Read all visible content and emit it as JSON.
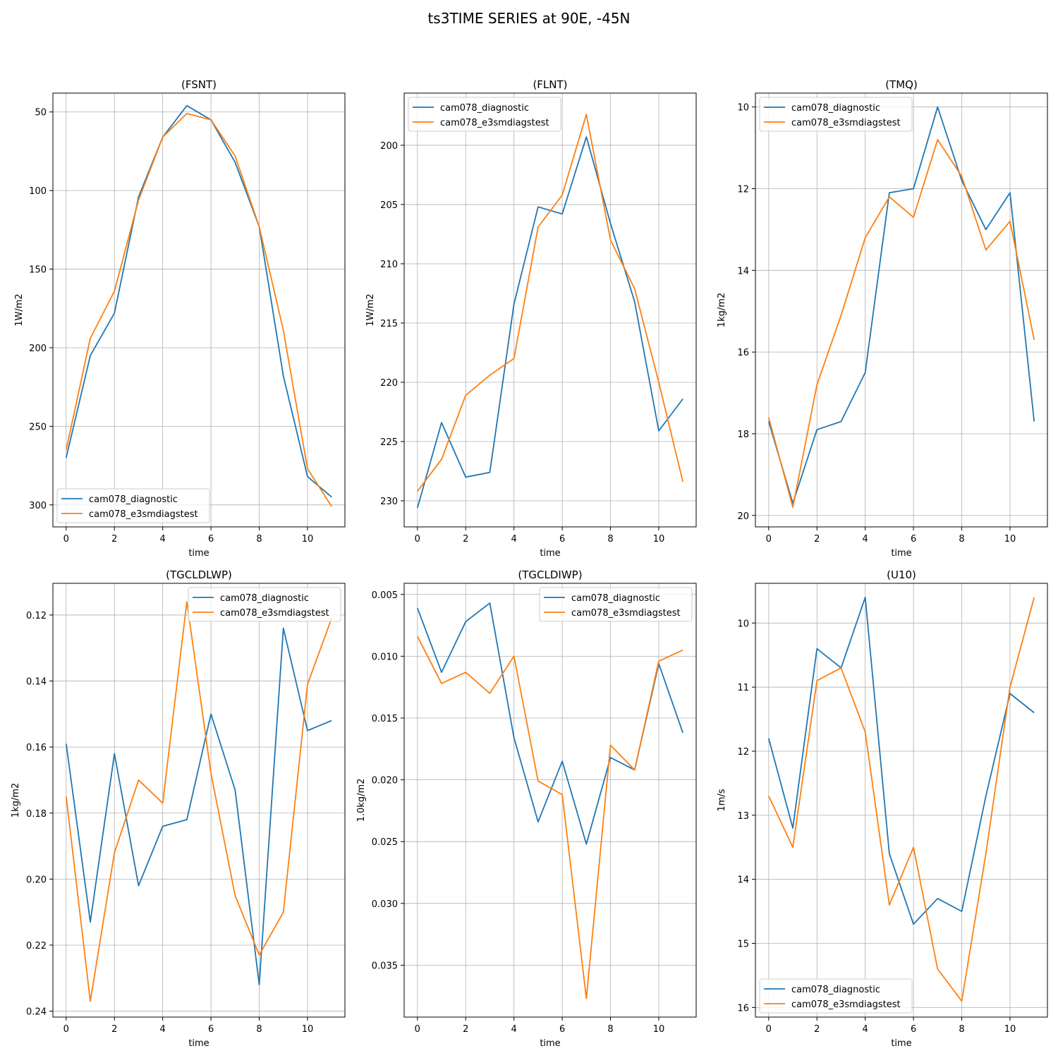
{
  "figure_title": "ts3TIME SERIES at 90E, -45N",
  "colors": {
    "series_1": "#1f77b4",
    "series_2": "#ff7f0e",
    "grid": "#b0b0b0"
  },
  "chart_data": [
    {
      "type": "line",
      "title": "(FSNT)",
      "xlabel": "time",
      "ylabel": "1W/m2",
      "y_inverted": true,
      "xlim": [
        -0.55,
        11.55
      ],
      "ylim": [
        314,
        38
      ],
      "xticks": [
        0,
        2,
        4,
        6,
        8,
        10
      ],
      "yticks": [
        50,
        100,
        150,
        200,
        250,
        300
      ],
      "ytick_labels": [
        "50",
        "100",
        "150",
        "200",
        "250",
        "300"
      ],
      "grid": true,
      "legend_location": "lower-left",
      "x": [
        0,
        1,
        2,
        3,
        4,
        5,
        6,
        7,
        8,
        9,
        10,
        11
      ],
      "series": [
        {
          "name": "cam078_diagnostic",
          "values": [
            270,
            205,
            178,
            104,
            66,
            46,
            55,
            82,
            123,
            218,
            282,
            295
          ]
        },
        {
          "name": "cam078_e3smdiagstest",
          "values": [
            265,
            194,
            164,
            106,
            66,
            51,
            55,
            78,
            123,
            189,
            277,
            301
          ]
        }
      ]
    },
    {
      "type": "line",
      "title": "(FLNT)",
      "xlabel": "time",
      "ylabel": "1W/m2",
      "y_inverted": true,
      "xlim": [
        -0.55,
        11.55
      ],
      "ylim": [
        232.2,
        195.6
      ],
      "xticks": [
        0,
        2,
        4,
        6,
        8,
        10
      ],
      "yticks": [
        200,
        205,
        210,
        215,
        220,
        225,
        230
      ],
      "ytick_labels": [
        "200",
        "205",
        "210",
        "215",
        "220",
        "225",
        "230"
      ],
      "grid": true,
      "legend_location": "upper-left",
      "x": [
        0,
        1,
        2,
        3,
        4,
        5,
        6,
        7,
        8,
        9,
        10,
        11
      ],
      "series": [
        {
          "name": "cam078_diagnostic",
          "values": [
            230.6,
            223.4,
            228.0,
            227.6,
            213.4,
            205.2,
            205.8,
            199.3,
            206.6,
            213.2,
            224.1,
            221.4
          ]
        },
        {
          "name": "cam078_e3smdiagstest",
          "values": [
            229.2,
            226.5,
            221.1,
            219.4,
            218.0,
            206.9,
            204.2,
            197.4,
            208.0,
            212.1,
            220.0,
            228.4
          ]
        }
      ]
    },
    {
      "type": "line",
      "title": "(TMQ)",
      "xlabel": "time",
      "ylabel": "1kg/m2",
      "y_inverted": true,
      "xlim": [
        -0.55,
        11.55
      ],
      "ylim": [
        20.28,
        9.66
      ],
      "xticks": [
        0,
        2,
        4,
        6,
        8,
        10
      ],
      "yticks": [
        10,
        12,
        14,
        16,
        18,
        20
      ],
      "ytick_labels": [
        "10",
        "12",
        "14",
        "16",
        "18",
        "20"
      ],
      "grid": true,
      "legend_location": "upper-left",
      "x": [
        0,
        1,
        2,
        3,
        4,
        5,
        6,
        7,
        8,
        9,
        10,
        11
      ],
      "series": [
        {
          "name": "cam078_diagnostic",
          "values": [
            17.7,
            19.7,
            17.9,
            17.7,
            16.5,
            12.1,
            12.0,
            10.0,
            11.8,
            13.0,
            12.1,
            17.7
          ]
        },
        {
          "name": "cam078_e3smdiagstest",
          "values": [
            17.6,
            19.8,
            16.8,
            15.1,
            13.2,
            12.2,
            12.7,
            10.8,
            11.7,
            13.5,
            12.8,
            15.7
          ]
        }
      ]
    },
    {
      "type": "line",
      "title": "(TGCLDLWP)",
      "xlabel": "time",
      "ylabel": "1kg/m2",
      "y_inverted": true,
      "xlim": [
        -0.55,
        11.55
      ],
      "ylim": [
        0.2418,
        0.1104
      ],
      "xticks": [
        0,
        2,
        4,
        6,
        8,
        10
      ],
      "yticks": [
        0.12,
        0.14,
        0.16,
        0.18,
        0.2,
        0.22,
        0.24
      ],
      "ytick_labels": [
        "0.12",
        "0.14",
        "0.16",
        "0.18",
        "0.20",
        "0.22",
        "0.24"
      ],
      "grid": true,
      "legend_location": "upper-right",
      "x": [
        0,
        1,
        2,
        3,
        4,
        5,
        6,
        7,
        8,
        9,
        10,
        11
      ],
      "series": [
        {
          "name": "cam078_diagnostic",
          "values": [
            0.159,
            0.213,
            0.162,
            0.202,
            0.184,
            0.182,
            0.15,
            0.173,
            0.232,
            0.124,
            0.155,
            0.152
          ]
        },
        {
          "name": "cam078_e3smdiagstest",
          "values": [
            0.175,
            0.237,
            0.192,
            0.17,
            0.177,
            0.116,
            0.168,
            0.205,
            0.223,
            0.21,
            0.141,
            0.121
          ]
        }
      ]
    },
    {
      "type": "line",
      "title": "(TGCLDIWP)",
      "xlabel": "time",
      "ylabel": "1.0kg/m2",
      "y_inverted": true,
      "xlim": [
        -0.55,
        11.55
      ],
      "ylim": [
        0.0392,
        0.0041
      ],
      "xticks": [
        0,
        2,
        4,
        6,
        8,
        10
      ],
      "yticks": [
        0.005,
        0.01,
        0.015,
        0.02,
        0.025,
        0.03,
        0.035
      ],
      "ytick_labels": [
        "0.005",
        "0.010",
        "0.015",
        "0.020",
        "0.025",
        "0.030",
        "0.035"
      ],
      "grid": true,
      "legend_location": "upper-right",
      "x": [
        0,
        1,
        2,
        3,
        4,
        5,
        6,
        7,
        8,
        9,
        10,
        11
      ],
      "series": [
        {
          "name": "cam078_diagnostic",
          "values": [
            0.0061,
            0.0113,
            0.0072,
            0.0057,
            0.0166,
            0.0234,
            0.0185,
            0.0252,
            0.0182,
            0.0192,
            0.0106,
            0.0162
          ]
        },
        {
          "name": "cam078_e3smdiagstest",
          "values": [
            0.0084,
            0.0122,
            0.0113,
            0.013,
            0.01,
            0.0201,
            0.0212,
            0.0377,
            0.0172,
            0.0192,
            0.0104,
            0.0095
          ]
        }
      ]
    },
    {
      "type": "line",
      "title": "(U10)",
      "xlabel": "time",
      "ylabel": "1m/s",
      "y_inverted": true,
      "xlim": [
        -0.55,
        11.55
      ],
      "ylim": [
        16.15,
        9.38
      ],
      "xticks": [
        0,
        2,
        4,
        6,
        8,
        10
      ],
      "yticks": [
        10,
        11,
        12,
        13,
        14,
        15,
        16
      ],
      "ytick_labels": [
        "10",
        "11",
        "12",
        "13",
        "14",
        "15",
        "16"
      ],
      "grid": true,
      "legend_location": "lower-left",
      "x": [
        0,
        1,
        2,
        3,
        4,
        5,
        6,
        7,
        8,
        9,
        10,
        11
      ],
      "series": [
        {
          "name": "cam078_diagnostic",
          "values": [
            11.8,
            13.2,
            10.4,
            10.7,
            9.6,
            13.6,
            14.7,
            14.3,
            14.5,
            12.7,
            11.1,
            11.4
          ]
        },
        {
          "name": "cam078_e3smdiagstest",
          "values": [
            12.7,
            13.5,
            10.9,
            10.7,
            11.7,
            14.4,
            13.5,
            15.4,
            15.9,
            13.6,
            11.0,
            9.6
          ]
        }
      ]
    }
  ]
}
